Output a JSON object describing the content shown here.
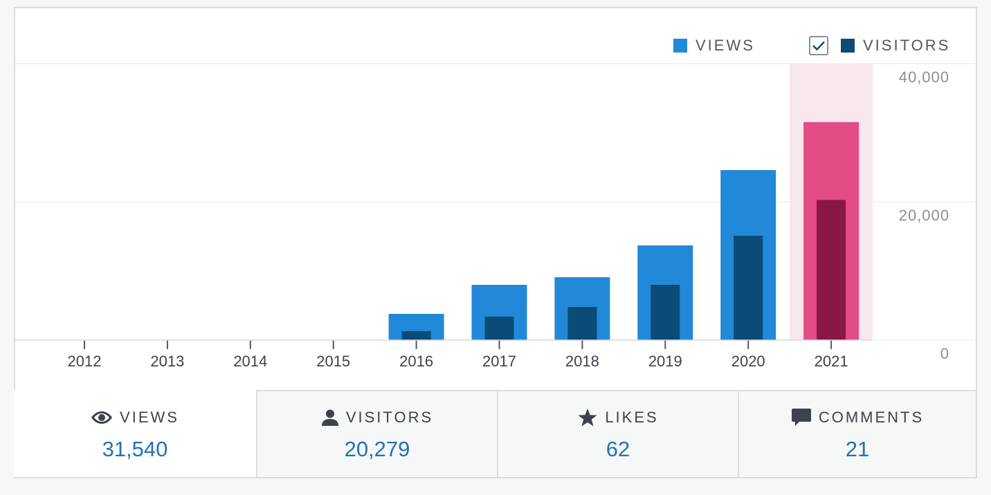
{
  "legend": {
    "views_label": "VIEWS",
    "visitors_label": "VISITORS",
    "visitors_checked": true
  },
  "colors": {
    "views": "#2189d8",
    "visitors": "#0a4b78",
    "highlight_views": "#e34c84",
    "highlight_visitors": "#8a1847",
    "highlight_band": "#f9e7ee",
    "gridline": "#f0f0f1",
    "axis_text": "#8c8f94",
    "value": "#2271b1"
  },
  "chart_data": {
    "type": "bar",
    "categories": [
      "2012",
      "2013",
      "2014",
      "2015",
      "2016",
      "2017",
      "2018",
      "2019",
      "2020",
      "2021"
    ],
    "series": [
      {
        "name": "VIEWS",
        "values": [
          0,
          0,
          0,
          0,
          3800,
          8000,
          9100,
          13700,
          24600,
          31540
        ]
      },
      {
        "name": "VISITORS",
        "values": [
          0,
          0,
          0,
          0,
          1300,
          3400,
          4800,
          8000,
          15100,
          20279
        ]
      }
    ],
    "highlighted_category": "2021",
    "y_ticks": [
      "0",
      "20,000",
      "40,000"
    ],
    "y_tick_values": [
      0,
      20000,
      40000
    ],
    "ylim": [
      0,
      40000
    ],
    "grid": true,
    "legend_position": "top-right"
  },
  "stats": [
    {
      "label": "VIEWS",
      "value": "31,540",
      "icon": "eye-icon",
      "active": true
    },
    {
      "label": "VISITORS",
      "value": "20,279",
      "icon": "person-icon",
      "active": false
    },
    {
      "label": "LIKES",
      "value": "62",
      "icon": "star-icon",
      "active": false
    },
    {
      "label": "COMMENTS",
      "value": "21",
      "icon": "comment-icon",
      "active": false
    }
  ]
}
